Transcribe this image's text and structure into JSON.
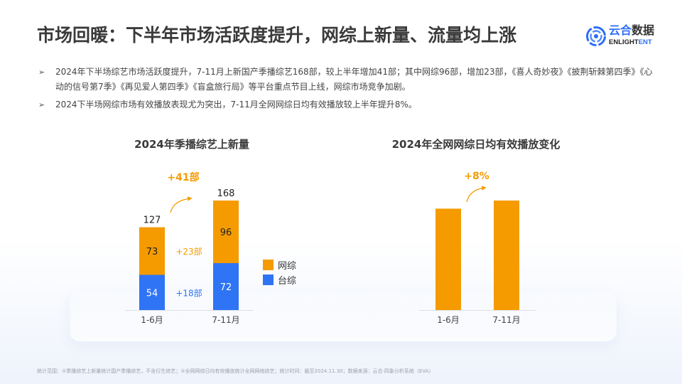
{
  "header": {
    "title": "市场回暖：下半年市场活跃度提升，网综上新量、流量均上涨",
    "logo": {
      "cn_part1": "云合",
      "cn_part2": "数据",
      "en_part1": "ENLIGHT",
      "en_part2": "ENT",
      "icon": "enlightent-logo-icon"
    }
  },
  "bullets": [
    {
      "icon": "arrow-bullet-icon",
      "marker": "➢",
      "text": "2024年下半场综艺市场活跃度提升，7-11月上新国产季播综艺168部，较上半年增加41部；其中网综96部，增加23部，《喜人奇妙夜》《披荆斩棘第四季》《心动的信号第7季》《再见爱人第四季》《盲盒旅行局》等平台重点节目上线，网综市场竞争加剧。"
    },
    {
      "icon": "arrow-bullet-icon",
      "marker": "➢",
      "text": "2024下半场网综市场有效播放表现尤为突出，7-11月全网网综日均有效播放较上半年提升8%。"
    }
  ],
  "colors": {
    "web": "#f59b00",
    "tv": "#2f74f5",
    "title": "#3a3a3a",
    "accent": "#f59b00"
  },
  "chart_data": [
    {
      "type": "bar",
      "stacked": true,
      "title": "2024年季播综艺上新量",
      "categories": [
        "1-6月",
        "7-11月"
      ],
      "series": [
        {
          "name": "台综",
          "values": [
            54,
            72
          ],
          "color": "#2f74f5"
        },
        {
          "name": "网综",
          "values": [
            73,
            96
          ],
          "color": "#f59b00"
        }
      ],
      "totals": [
        127,
        168
      ],
      "total_labels": [
        "127",
        "168"
      ],
      "segment_labels": {
        "台综": [
          "54",
          "72"
        ],
        "网综": [
          "73",
          "96"
        ]
      },
      "annotations": {
        "total_increase": "+41部",
        "web_increase": "+23部",
        "tv_increase": "+18部"
      },
      "legend": {
        "position": "right",
        "items": [
          "网综",
          "台综"
        ]
      },
      "ylim": [
        0,
        168
      ],
      "grid": false,
      "xlabel": "",
      "ylabel": ""
    },
    {
      "type": "bar",
      "stacked": false,
      "title": "2024年全网网综日均有效播放变化",
      "categories": [
        "1-6月",
        "7-11月"
      ],
      "values": [
        100,
        108
      ],
      "value_note": "indexed; 1-6月 = 100",
      "annotations": {
        "increase": "+8%"
      },
      "color": "#f59b00",
      "ylim": [
        0,
        108
      ],
      "grid": false,
      "xlabel": "",
      "ylabel": ""
    }
  ],
  "footnote": "统计范围：①季播综艺上新量统计国产季播综艺，不含衍生综艺；②全网网综日均有效播放统计全网网络综艺；统计时间：截至2024.11.30；数据来源：云合·四象分析系统（EVA）"
}
